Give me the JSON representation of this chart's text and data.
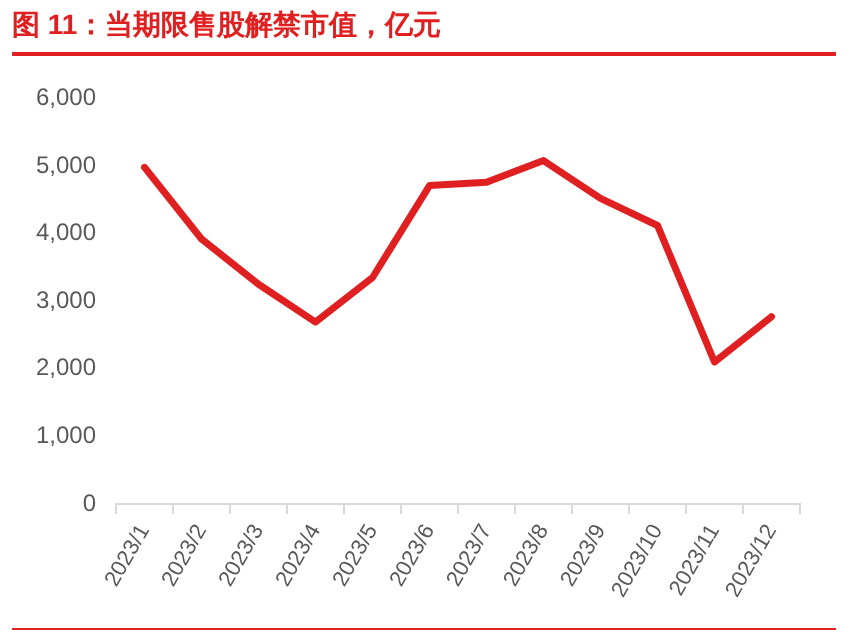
{
  "chart_data": {
    "type": "line",
    "title": "图 11：当期限售股解禁市值，亿元",
    "categories": [
      "2023/1",
      "2023/2",
      "2023/3",
      "2023/4",
      "2023/5",
      "2023/6",
      "2023/7",
      "2023/8",
      "2023/9",
      "2023/10",
      "2023/11",
      "2023/12"
    ],
    "series": [
      {
        "color": "#e02020",
        "values": [
          4980,
          3920,
          3250,
          2690,
          3350,
          4710,
          4760,
          5080,
          4520,
          4120,
          2100,
          2770
        ]
      }
    ],
    "ylim": [
      0,
      6000
    ],
    "yticks": [
      0,
      {
        "value": 1000,
        "label": "1,000"
      },
      {
        "value": 2000,
        "label": "2,000"
      },
      {
        "value": 3000,
        "label": "3,000"
      },
      {
        "value": 4000,
        "label": "4,000"
      },
      {
        "value": 5000,
        "label": "5,000"
      },
      {
        "value": 6000,
        "label": "6,000"
      }
    ],
    "grid": false,
    "legend": false,
    "marker": "none",
    "line_style": "solid"
  }
}
